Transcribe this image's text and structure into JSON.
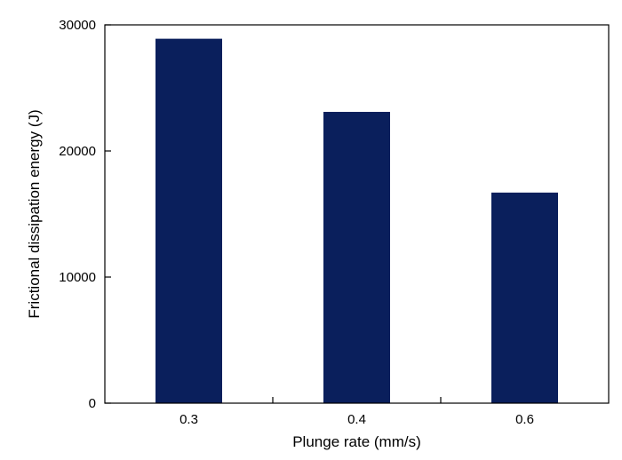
{
  "chart_data": {
    "type": "bar",
    "categories": [
      "0.3",
      "0.4",
      "0.6"
    ],
    "values": [
      28900,
      23100,
      16700
    ],
    "xlabel": "Plunge rate (mm/s)",
    "ylabel": "Frictional dissipation  energy (J)",
    "ylim": [
      0,
      30000
    ],
    "yticks": [
      "0",
      "10000",
      "20000",
      "30000"
    ],
    "grid": false,
    "bar_color": "#0a1f5c"
  }
}
